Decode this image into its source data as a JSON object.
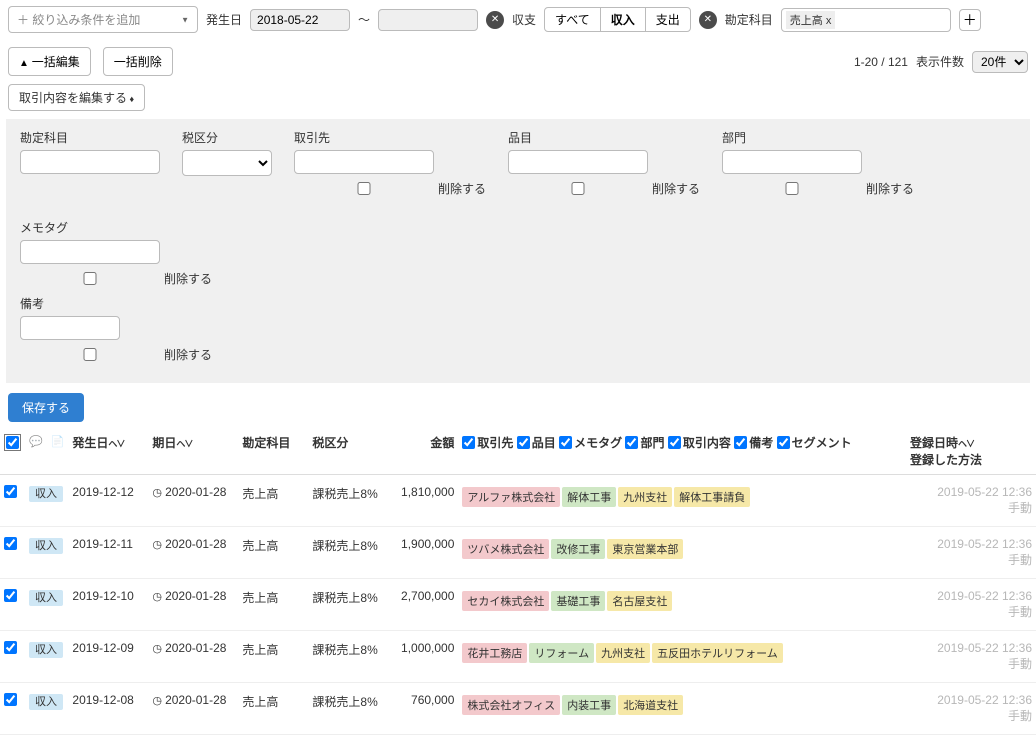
{
  "filter_bar": {
    "add_condition_placeholder": "＋ 絞り込み条件を追加",
    "date_label": "発生日",
    "date_from": "2018-05-22",
    "date_to": "",
    "tilde": "〜",
    "io_label": "収支",
    "io_all": "すべて",
    "io_in": "収入",
    "io_out": "支出",
    "account_label": "勘定科目",
    "account_chip": "売上高 x"
  },
  "actions": {
    "bulk_edit": "一括編集",
    "bulk_delete": "一括削除",
    "count_text": "1-20 / 121",
    "page_size_label": "表示件数",
    "page_size_value": "20件",
    "edit_content_label": "取引内容を編集する"
  },
  "bulk": {
    "fields": {
      "account": "勘定科目",
      "tax": "税区分",
      "partner": "取引先",
      "item": "品目",
      "dept": "部門",
      "memo": "メモタグ",
      "remark": "備考"
    },
    "delete_cb": "削除する",
    "save": "保存する"
  },
  "table": {
    "headers": {
      "date": "発生日",
      "due": "期日",
      "account": "勘定科目",
      "tax": "税区分",
      "amount": "金額",
      "partner": "取引先",
      "item": "品目",
      "memo": "メモタグ",
      "dept": "部門",
      "content": "取引内容",
      "remark": "備考",
      "segment": "セグメント",
      "registered_dt": "登録日時",
      "registered_by": "登録した方法"
    },
    "rows": [
      {
        "type": "収入",
        "date": "2019-12-12",
        "due": "2020-01-28",
        "account": "売上高",
        "tax": "課税売上8%",
        "amount": "1,810,000",
        "tags": [
          {
            "text": "アルファ株式会社",
            "cls": "tag-red"
          },
          {
            "text": "解体工事",
            "cls": "tag-green"
          },
          {
            "text": "九州支社",
            "cls": "tag-yellow"
          },
          {
            "text": "解体工事請負",
            "cls": "tag-yellow"
          }
        ],
        "reg_dt": "2019-05-22 12:36",
        "reg_by": "手動"
      },
      {
        "type": "収入",
        "date": "2019-12-11",
        "due": "2020-01-28",
        "account": "売上高",
        "tax": "課税売上8%",
        "amount": "1,900,000",
        "tags": [
          {
            "text": "ツバメ株式会社",
            "cls": "tag-red"
          },
          {
            "text": "改修工事",
            "cls": "tag-green"
          },
          {
            "text": "東京営業本部",
            "cls": "tag-yellow"
          }
        ],
        "reg_dt": "2019-05-22 12:36",
        "reg_by": "手動"
      },
      {
        "type": "収入",
        "date": "2019-12-10",
        "due": "2020-01-28",
        "account": "売上高",
        "tax": "課税売上8%",
        "amount": "2,700,000",
        "tags": [
          {
            "text": "セカイ株式会社",
            "cls": "tag-red"
          },
          {
            "text": "基礎工事",
            "cls": "tag-green"
          },
          {
            "text": "名古屋支社",
            "cls": "tag-yellow"
          }
        ],
        "reg_dt": "2019-05-22 12:36",
        "reg_by": "手動"
      },
      {
        "type": "収入",
        "date": "2019-12-09",
        "due": "2020-01-28",
        "account": "売上高",
        "tax": "課税売上8%",
        "amount": "1,000,000",
        "tags": [
          {
            "text": "花井工務店",
            "cls": "tag-red"
          },
          {
            "text": "リフォーム",
            "cls": "tag-green"
          },
          {
            "text": "九州支社",
            "cls": "tag-yellow"
          },
          {
            "text": "五反田ホテルリフォーム",
            "cls": "tag-yellow"
          }
        ],
        "reg_dt": "2019-05-22 12:36",
        "reg_by": "手動"
      },
      {
        "type": "収入",
        "date": "2019-12-08",
        "due": "2020-01-28",
        "account": "売上高",
        "tax": "課税売上8%",
        "amount": "760,000",
        "tags": [
          {
            "text": "株式会社オフィス",
            "cls": "tag-red"
          },
          {
            "text": "内装工事",
            "cls": "tag-green"
          },
          {
            "text": "北海道支社",
            "cls": "tag-yellow"
          }
        ],
        "reg_dt": "2019-05-22 12:36",
        "reg_by": "手動"
      }
    ]
  }
}
